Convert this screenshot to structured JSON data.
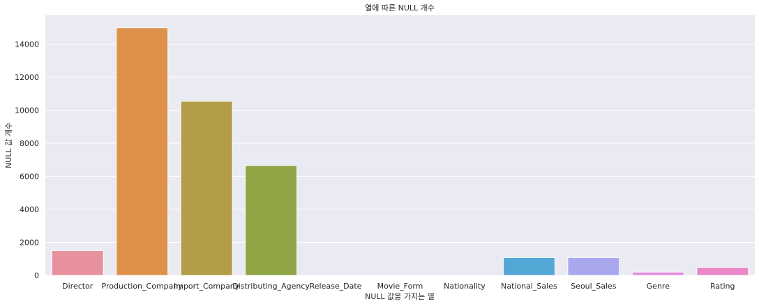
{
  "chart_data": {
    "type": "bar",
    "title": "열에 따른 NULL 개수",
    "xlabel": "NULL 값을 가지는 열",
    "ylabel": "NULL 값 개수",
    "categories": [
      "Director",
      "Production_Company",
      "Import_Company",
      "Distributing_Agency",
      "Release_Date",
      "Movie_Form",
      "Nationality",
      "National_Sales",
      "Seoul_Sales",
      "Genre",
      "Rating"
    ],
    "values": [
      1500,
      15000,
      10550,
      6650,
      0,
      0,
      0,
      1080,
      1080,
      200,
      490
    ],
    "colors": [
      "#e8919e",
      "#dd914b",
      "#b39c47",
      "#8fa444",
      "#47a67c",
      "#4aa99c",
      "#4ba8b4",
      "#53a7d4",
      "#a9a8ef",
      "#e18be0",
      "#e889c6"
    ],
    "ylim": [
      0,
      15750
    ],
    "yticks": [
      0,
      2000,
      4000,
      6000,
      8000,
      10000,
      12000,
      14000
    ],
    "grid": true,
    "background": "#eaeaf2"
  }
}
